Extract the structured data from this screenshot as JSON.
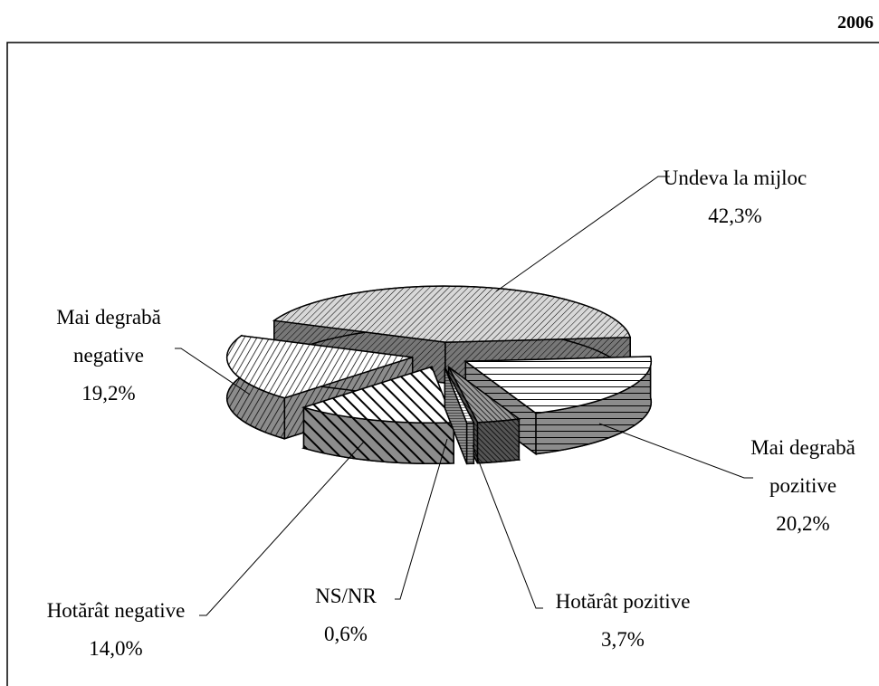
{
  "chart_data": {
    "type": "pie",
    "title": "2006",
    "categories": [
      "Mai degrabă pozitive",
      "Hotărât pozitive",
      "NS/NR",
      "Hotărât negative",
      "Mai degrabă negative",
      "Undeva la mijloc"
    ],
    "values": [
      20.2,
      3.7,
      0.6,
      14.0,
      19.2,
      42.3
    ],
    "value_labels": [
      "20,2%",
      "3,7%",
      "0,6%",
      "14,0%",
      "19,2%",
      "42,3%"
    ],
    "colors": [
      "#ffffff",
      "#9a9a9a",
      "#ffffff",
      "#ffffff",
      "#ffffff",
      "#d8d8d8"
    ]
  }
}
